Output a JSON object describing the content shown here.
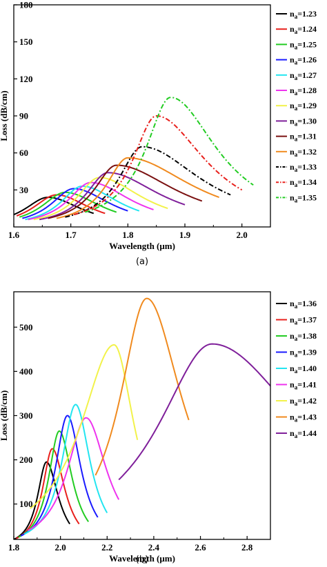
{
  "chart_data": [
    {
      "type": "line",
      "caption": "(a)",
      "xlabel": "Wavelength (μm)",
      "ylabel": "Loss (dB/cm)",
      "xlim": [
        1.6,
        2.05
      ],
      "ylim": [
        0,
        180
      ],
      "xticks": [
        1.6,
        1.7,
        1.8,
        1.9,
        2.0
      ],
      "yticks": [
        30,
        60,
        90,
        120,
        150,
        180
      ],
      "grid": false,
      "legend_position": "right",
      "series": [
        {
          "name": "1.23",
          "color": "#000000",
          "dash": "solid",
          "peak_x": 1.66,
          "peak_y": 24,
          "x_start": 1.6,
          "x_end": 1.74,
          "y_start": 10,
          "y_end": 11
        },
        {
          "name": "1.24",
          "color": "#e8201c",
          "dash": "solid",
          "peak_x": 1.675,
          "peak_y": 26,
          "x_start": 1.605,
          "x_end": 1.76,
          "y_start": 9,
          "y_end": 11
        },
        {
          "name": "1.25",
          "color": "#22cc22",
          "dash": "solid",
          "peak_x": 1.69,
          "peak_y": 28,
          "x_start": 1.61,
          "x_end": 1.78,
          "y_start": 8,
          "y_end": 12
        },
        {
          "name": "1.26",
          "color": "#1a1aff",
          "dash": "solid",
          "peak_x": 1.705,
          "peak_y": 31,
          "x_start": 1.615,
          "x_end": 1.8,
          "y_start": 7,
          "y_end": 13
        },
        {
          "name": "1.27",
          "color": "#22e5f0",
          "dash": "solid",
          "peak_x": 1.72,
          "peak_y": 33,
          "x_start": 1.62,
          "x_end": 1.82,
          "y_start": 6,
          "y_end": 13
        },
        {
          "name": "1.28",
          "color": "#ee33ee",
          "dash": "solid",
          "peak_x": 1.735,
          "peak_y": 36,
          "x_start": 1.625,
          "x_end": 1.845,
          "y_start": 6,
          "y_end": 14
        },
        {
          "name": "1.29",
          "color": "#f2f24a",
          "dash": "solid",
          "peak_x": 1.75,
          "peak_y": 40,
          "x_start": 1.635,
          "x_end": 1.87,
          "y_start": 6,
          "y_end": 15
        },
        {
          "name": "1.30",
          "color": "#7f1f9a",
          "dash": "solid",
          "peak_x": 1.765,
          "peak_y": 44,
          "x_start": 1.645,
          "x_end": 1.9,
          "y_start": 6,
          "y_end": 18
        },
        {
          "name": "1.31",
          "color": "#7a1010",
          "dash": "solid",
          "peak_x": 1.78,
          "peak_y": 50,
          "x_start": 1.66,
          "x_end": 1.93,
          "y_start": 7,
          "y_end": 21
        },
        {
          "name": "1.32",
          "color": "#f08a1e",
          "dash": "solid",
          "peak_x": 1.8,
          "peak_y": 56,
          "x_start": 1.675,
          "x_end": 1.96,
          "y_start": 7,
          "y_end": 24
        },
        {
          "name": "1.33",
          "color": "#000000",
          "dash": "dashdot",
          "peak_x": 1.825,
          "peak_y": 65,
          "x_start": 1.69,
          "x_end": 1.98,
          "y_start": 8,
          "y_end": 26
        },
        {
          "name": "1.34",
          "color": "#e8201c",
          "dash": "dashdot",
          "peak_x": 1.85,
          "peak_y": 90,
          "x_start": 1.705,
          "x_end": 2.0,
          "y_start": 10,
          "y_end": 30
        },
        {
          "name": "1.35",
          "color": "#22cc22",
          "dash": "dashdot",
          "peak_x": 1.875,
          "peak_y": 105,
          "x_start": 1.725,
          "x_end": 2.02,
          "y_start": 12,
          "y_end": 34
        }
      ]
    },
    {
      "type": "line",
      "caption": "(b)",
      "xlabel": "Wavelength (μm)",
      "ylabel": "Loss (dB/cm)",
      "xlim": [
        1.8,
        2.9
      ],
      "ylim": [
        20,
        580
      ],
      "xticks": [
        1.8,
        2.0,
        2.2,
        2.4,
        2.6,
        2.8
      ],
      "yticks": [
        100,
        200,
        300,
        400,
        500
      ],
      "grid": false,
      "legend_position": "right",
      "series": [
        {
          "name": "1.36",
          "color": "#000000",
          "dash": "solid",
          "peak_x": 1.94,
          "peak_y": 195,
          "x_start": 1.8,
          "x_end": 2.04,
          "y_start": 20,
          "y_end": 55
        },
        {
          "name": "1.37",
          "color": "#e8201c",
          "dash": "solid",
          "peak_x": 1.965,
          "peak_y": 225,
          "x_start": 1.81,
          "x_end": 2.08,
          "y_start": 22,
          "y_end": 55
        },
        {
          "name": "1.38",
          "color": "#22cc22",
          "dash": "solid",
          "peak_x": 1.995,
          "peak_y": 265,
          "x_start": 1.82,
          "x_end": 2.12,
          "y_start": 25,
          "y_end": 60
        },
        {
          "name": "1.39",
          "color": "#1a1aff",
          "dash": "solid",
          "peak_x": 2.03,
          "peak_y": 300,
          "x_start": 1.83,
          "x_end": 2.16,
          "y_start": 28,
          "y_end": 70
        },
        {
          "name": "1.40",
          "color": "#22e5f0",
          "dash": "solid",
          "peak_x": 2.065,
          "peak_y": 325,
          "x_start": 1.845,
          "x_end": 2.2,
          "y_start": 32,
          "y_end": 80
        },
        {
          "name": "1.41",
          "color": "#ee33ee",
          "dash": "solid",
          "peak_x": 2.11,
          "peak_y": 295,
          "x_start": 1.86,
          "x_end": 2.25,
          "y_start": 40,
          "y_end": 110
        },
        {
          "name": "1.42",
          "color": "#f2f24a",
          "dash": "solid",
          "peak_x": 2.23,
          "peak_y": 460,
          "x_start": 1.87,
          "x_end": 2.33,
          "y_start": 90,
          "y_end": 245
        },
        {
          "name": "1.43",
          "color": "#f08a1e",
          "dash": "solid",
          "peak_x": 2.37,
          "peak_y": 565,
          "x_start": 2.15,
          "x_end": 2.55,
          "y_start": 165,
          "y_end": 290
        },
        {
          "name": "1.44",
          "color": "#7f1f9a",
          "dash": "solid",
          "peak_x": 2.65,
          "peak_y": 462,
          "x_start": 2.25,
          "x_end": 2.9,
          "y_start": 155,
          "y_end": 367
        }
      ]
    }
  ],
  "legend_prefix": "n",
  "legend_subscript": "a",
  "legend_equals": "="
}
